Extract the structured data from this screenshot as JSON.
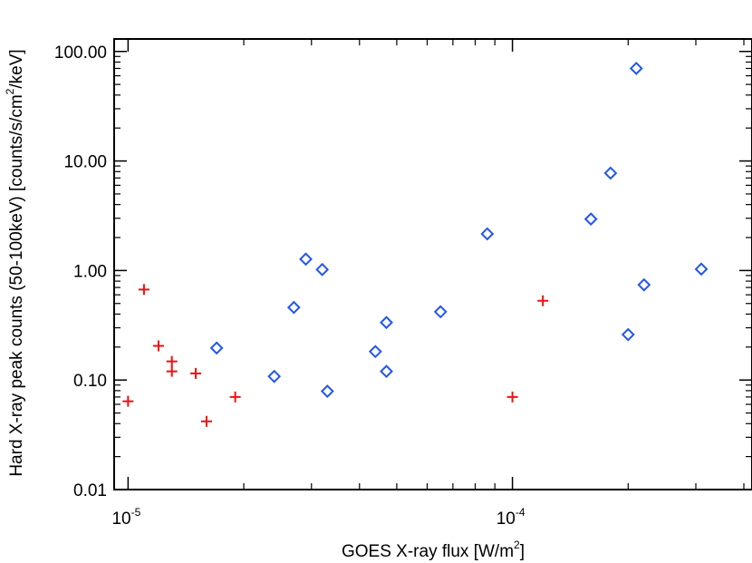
{
  "chart_data": {
    "type": "scatter",
    "title": "",
    "xlabel": "GOES X-ray flux [W/m",
    "xlabel_sup": "2",
    "xlabel_end": "]",
    "ylabel": "Hard X-ray peak counts (50-100keV) [counts/s/cm",
    "ylabel_sup": "2",
    "ylabel_end": "/keV]",
    "x_scale": "log",
    "y_scale": "log",
    "xlim": [
      9.2e-06,
      0.00042
    ],
    "ylim": [
      0.01,
      130
    ],
    "x_ticks": [
      {
        "value": 1e-05,
        "base": "10",
        "exp": "-5"
      },
      {
        "value": 0.0001,
        "base": "10",
        "exp": "-4"
      }
    ],
    "y_ticks": [
      {
        "value": 0.01,
        "label": "0.01"
      },
      {
        "value": 0.1,
        "label": "0.10"
      },
      {
        "value": 1,
        "label": "1.00"
      },
      {
        "value": 10,
        "label": "10.00"
      },
      {
        "value": 100,
        "label": "100.00"
      }
    ],
    "colors": {
      "plus": "#ee1111",
      "diamond": "#2255ee",
      "axis": "#000000"
    },
    "series": [
      {
        "marker": "plus",
        "points": [
          {
            "x": 1e-05,
            "y": 0.064
          },
          {
            "x": 1.1e-05,
            "y": 0.67
          },
          {
            "x": 1.2e-05,
            "y": 0.205
          },
          {
            "x": 1.3e-05,
            "y": 0.148
          },
          {
            "x": 1.3e-05,
            "y": 0.12
          },
          {
            "x": 1.5e-05,
            "y": 0.115
          },
          {
            "x": 1.6e-05,
            "y": 0.042
          },
          {
            "x": 1.9e-05,
            "y": 0.07
          },
          {
            "x": 0.0001,
            "y": 0.07
          },
          {
            "x": 0.00012,
            "y": 0.53
          }
        ]
      },
      {
        "marker": "diamond",
        "points": [
          {
            "x": 1.7e-05,
            "y": 0.196
          },
          {
            "x": 2.4e-05,
            "y": 0.108
          },
          {
            "x": 2.7e-05,
            "y": 0.46
          },
          {
            "x": 2.9e-05,
            "y": 1.27
          },
          {
            "x": 3.2e-05,
            "y": 1.02
          },
          {
            "x": 3.3e-05,
            "y": 0.079
          },
          {
            "x": 4.4e-05,
            "y": 0.182
          },
          {
            "x": 4.7e-05,
            "y": 0.335
          },
          {
            "x": 4.7e-05,
            "y": 0.12
          },
          {
            "x": 6.5e-05,
            "y": 0.42
          },
          {
            "x": 8.6e-05,
            "y": 2.16
          },
          {
            "x": 0.00016,
            "y": 2.95
          },
          {
            "x": 0.00018,
            "y": 7.75
          },
          {
            "x": 0.0002,
            "y": 0.26
          },
          {
            "x": 0.00021,
            "y": 70
          },
          {
            "x": 0.00022,
            "y": 0.74
          },
          {
            "x": 0.00031,
            "y": 1.03
          }
        ]
      }
    ]
  }
}
